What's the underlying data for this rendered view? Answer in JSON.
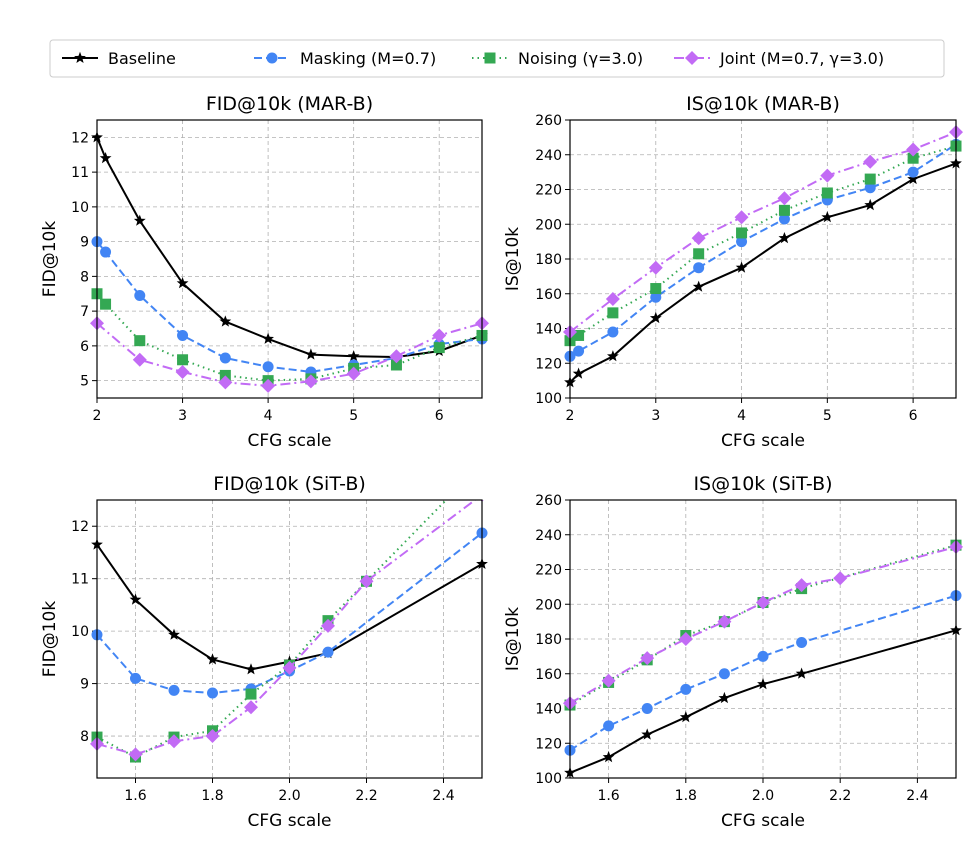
{
  "legend": {
    "placement": "top-center",
    "entries": [
      "Baseline",
      "Masking (M=0.7)",
      "Noising (γ=3.0)",
      "Joint (M=0.7, γ=3.0)"
    ]
  },
  "styles": [
    {
      "color": "#000000",
      "marker": "star",
      "dash": "solid"
    },
    {
      "color": "#4285f4",
      "marker": "circle",
      "dash": "dashed"
    },
    {
      "color": "#34a853",
      "marker": "square",
      "dash": "dotted"
    },
    {
      "color": "#c26bf5",
      "marker": "diamond",
      "dash": "dashdot"
    }
  ],
  "chart_data": [
    {
      "type": "line",
      "title": "FID@10k (MAR-B)",
      "xlabel": "CFG scale",
      "ylabel": "FID@10k",
      "xlim": [
        2,
        6.5
      ],
      "ylim": [
        4.5,
        12.5
      ],
      "grid": true,
      "xticks": [
        2,
        3,
        4,
        5,
        6
      ],
      "yticks": [
        5,
        6,
        7,
        8,
        9,
        10,
        11,
        12
      ],
      "series": [
        {
          "name": "Baseline",
          "x": [
            2,
            2.1,
            2.5,
            3,
            3.5,
            4,
            4.5,
            5,
            5.5,
            6,
            6.5
          ],
          "y": [
            12.0,
            11.4,
            9.6,
            7.8,
            6.7,
            6.2,
            5.75,
            5.7,
            5.68,
            5.85,
            6.3
          ]
        },
        {
          "name": "Masking (M=0.7)",
          "x": [
            2,
            2.1,
            2.5,
            3,
            3.5,
            4,
            4.5,
            5,
            5.5,
            6,
            6.5
          ],
          "y": [
            9.0,
            8.7,
            7.45,
            6.3,
            5.65,
            5.4,
            5.25,
            5.45,
            5.65,
            6.05,
            6.2
          ]
        },
        {
          "name": "Noising (γ=3.0)",
          "x": [
            2,
            2.1,
            2.5,
            3,
            3.5,
            4,
            4.5,
            5,
            5.5,
            6,
            6.5
          ],
          "y": [
            7.5,
            7.2,
            6.15,
            5.6,
            5.15,
            5.0,
            5.05,
            5.35,
            5.45,
            5.95,
            6.3
          ]
        },
        {
          "name": "Joint (M=0.7, γ=3.0)",
          "x": [
            2,
            2.5,
            3,
            3.5,
            4,
            4.5,
            5,
            5.5,
            6,
            6.5
          ],
          "y": [
            6.65,
            5.6,
            5.25,
            4.95,
            4.85,
            4.98,
            5.2,
            5.7,
            6.3,
            6.65
          ]
        }
      ]
    },
    {
      "type": "line",
      "title": "IS@10k (MAR-B)",
      "xlabel": "CFG scale",
      "ylabel": "IS@10k",
      "xlim": [
        2,
        6.5
      ],
      "ylim": [
        100,
        260
      ],
      "grid": true,
      "xticks": [
        2,
        3,
        4,
        5,
        6
      ],
      "yticks": [
        100,
        120,
        140,
        160,
        180,
        200,
        220,
        240,
        260
      ],
      "series": [
        {
          "name": "Baseline",
          "x": [
            2,
            2.1,
            2.5,
            3,
            3.5,
            4,
            4.5,
            5,
            5.5,
            6,
            6.5
          ],
          "y": [
            109,
            114,
            124,
            146,
            164,
            175,
            192,
            204,
            211,
            226,
            235
          ]
        },
        {
          "name": "Masking (M=0.7)",
          "x": [
            2,
            2.1,
            2.5,
            3,
            3.5,
            4,
            4.5,
            5,
            5.5,
            6,
            6.5
          ],
          "y": [
            124,
            127,
            138,
            158,
            175,
            190,
            203,
            214,
            221,
            230,
            246
          ]
        },
        {
          "name": "Noising (γ=3.0)",
          "x": [
            2,
            2.1,
            2.5,
            3,
            3.5,
            4,
            4.5,
            5,
            5.5,
            6,
            6.5
          ],
          "y": [
            133,
            136,
            149,
            163,
            183,
            195,
            208,
            218,
            226,
            238,
            245
          ]
        },
        {
          "name": "Joint (M=0.7, γ=3.0)",
          "x": [
            2,
            2.5,
            3,
            3.5,
            4,
            4.5,
            5,
            5.5,
            6,
            6.5
          ],
          "y": [
            138,
            157,
            175,
            192,
            204,
            215,
            228,
            236,
            243,
            253
          ]
        }
      ]
    },
    {
      "type": "line",
      "title": "FID@10k (SiT-B)",
      "xlabel": "CFG scale",
      "ylabel": "FID@10k",
      "xlim": [
        1.5,
        2.5
      ],
      "ylim": [
        7.2,
        12.5
      ],
      "grid": true,
      "xticks": [
        1.6,
        1.8,
        2.0,
        2.2,
        2.4
      ],
      "yticks": [
        8,
        9,
        10,
        11,
        12
      ],
      "series": [
        {
          "name": "Baseline",
          "x": [
            1.5,
            1.6,
            1.7,
            1.8,
            1.9,
            2.0,
            2.1,
            2.5
          ],
          "y": [
            11.65,
            10.6,
            9.93,
            9.46,
            9.27,
            9.42,
            9.58,
            11.28
          ]
        },
        {
          "name": "Masking (M=0.7)",
          "x": [
            1.5,
            1.6,
            1.7,
            1.8,
            1.9,
            2.0,
            2.1,
            2.5
          ],
          "y": [
            9.93,
            9.1,
            8.87,
            8.82,
            8.9,
            9.24,
            9.6,
            11.87
          ]
        },
        {
          "name": "Noising (γ=3.0)",
          "x": [
            1.5,
            1.6,
            1.7,
            1.8,
            1.9,
            2.0,
            2.1,
            2.2,
            2.5
          ],
          "y": [
            7.98,
            7.6,
            7.98,
            8.1,
            8.8,
            9.35,
            10.2,
            10.95,
            13.2
          ]
        },
        {
          "name": "Joint (M=0.7, γ=3.0)",
          "x": [
            1.5,
            1.6,
            1.7,
            1.8,
            1.9,
            2.0,
            2.1,
            2.2,
            2.5
          ],
          "y": [
            7.85,
            7.65,
            7.9,
            8.0,
            8.55,
            9.3,
            10.1,
            10.95,
            12.6
          ]
        }
      ]
    },
    {
      "type": "line",
      "title": "IS@10k (SiT-B)",
      "xlabel": "CFG scale",
      "ylabel": "IS@10k",
      "xlim": [
        1.5,
        2.5
      ],
      "ylim": [
        100,
        260
      ],
      "grid": true,
      "xticks": [
        1.6,
        1.8,
        2.0,
        2.2,
        2.4
      ],
      "yticks": [
        100,
        120,
        140,
        160,
        180,
        200,
        220,
        240,
        260
      ],
      "series": [
        {
          "name": "Baseline",
          "x": [
            1.5,
            1.6,
            1.7,
            1.8,
            1.9,
            2.0,
            2.1,
            2.5
          ],
          "y": [
            103,
            112,
            125,
            135,
            146,
            154,
            160,
            185
          ]
        },
        {
          "name": "Masking (M=0.7)",
          "x": [
            1.5,
            1.6,
            1.7,
            1.8,
            1.9,
            2.0,
            2.1,
            2.5
          ],
          "y": [
            116,
            130,
            140,
            151,
            160,
            170,
            178,
            205
          ]
        },
        {
          "name": "Noising (γ=3.0)",
          "x": [
            1.5,
            1.6,
            1.7,
            1.8,
            1.9,
            2.0,
            2.1,
            2.5
          ],
          "y": [
            142,
            155,
            168,
            182,
            190,
            201,
            209,
            234
          ]
        },
        {
          "name": "Joint (M=0.7, γ=3.0)",
          "x": [
            1.5,
            1.6,
            1.7,
            1.8,
            1.9,
            2.0,
            2.1,
            2.2,
            2.5
          ],
          "y": [
            143,
            156,
            169,
            180,
            190,
            201,
            211,
            215,
            233
          ]
        }
      ]
    }
  ]
}
